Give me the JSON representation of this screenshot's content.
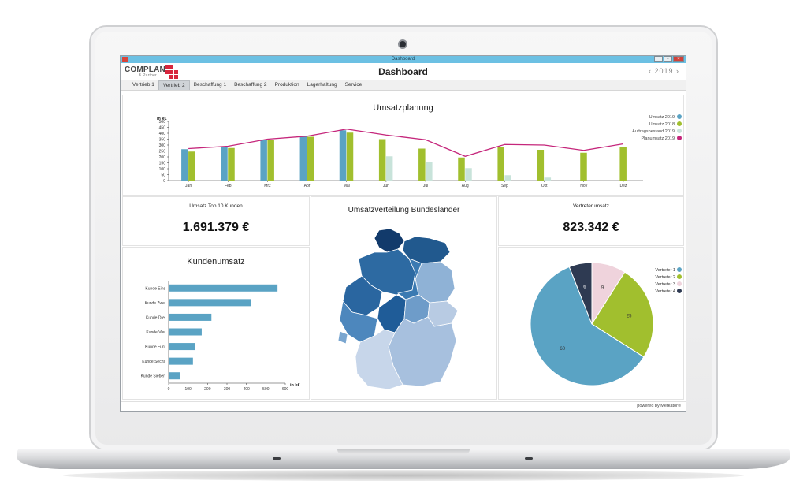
{
  "window": {
    "title": "Dashboard",
    "buttons": [
      "_",
      "▫",
      "×"
    ]
  },
  "header": {
    "logo_text": "COMPLAN",
    "logo_sub": "& Partner",
    "title": "Dashboard",
    "year_prev": "‹",
    "year": "2019",
    "year_next": "›"
  },
  "tabs": [
    "Vertrieb 1",
    "Vertrieb 2",
    "Beschaffung 1",
    "Beschaffung 2",
    "Produktion",
    "Lagerhaltung",
    "Service"
  ],
  "active_tab": 1,
  "umsatzplanung": {
    "title": "Umsatzplanung",
    "unit": "in k€",
    "legend": [
      "Umsatz 2019",
      "Umsatz 2018",
      "Auftragsbestand 2019",
      "Planumsatz 2019"
    ]
  },
  "kpi1": {
    "title": "Umsatz Top 10 Kunden",
    "value": "1.691.379 €"
  },
  "kpi2": {
    "title": "Vertreterumsatz",
    "value": "823.342 €"
  },
  "map": {
    "title": "Umsatzverteilung Bundesländer"
  },
  "kundenumsatz": {
    "title": "Kundenumsatz",
    "unit": "in k€"
  },
  "vertreter": {
    "legend": [
      "Vertreter 1",
      "Vertreter 2",
      "Vertreter 3",
      "Vertreter 4"
    ]
  },
  "footer": {
    "powered_by": "powered by Merkator®"
  },
  "colors": {
    "umsatz2019": "#5aa3c4",
    "umsatz2018": "#a1bf2e",
    "auftrag2019": "#c8e3da",
    "plan2019": "#c5267b",
    "v1": "#5aa3c4",
    "v2": "#a1bf2e",
    "v3": "#efd3dc",
    "v4": "#2e3a52"
  },
  "chart_data": [
    {
      "type": "bar",
      "title": "Umsatzplanung",
      "ylabel": "in k€",
      "categories": [
        "Jan",
        "Feb",
        "Mrz",
        "Apr",
        "Mai",
        "Jun",
        "Jul",
        "Aug",
        "Sep",
        "Okt",
        "Nov",
        "Dez"
      ],
      "ylim": [
        0,
        500
      ],
      "yticks": [
        0,
        50,
        100,
        150,
        200,
        250,
        300,
        350,
        400,
        450,
        500
      ],
      "series": [
        {
          "name": "Umsatz 2019",
          "kind": "bar",
          "values": [
            265,
            280,
            340,
            380,
            425,
            null,
            null,
            null,
            null,
            null,
            null,
            null
          ]
        },
        {
          "name": "Umsatz 2018",
          "kind": "bar",
          "values": [
            245,
            275,
            345,
            370,
            405,
            350,
            270,
            195,
            280,
            260,
            235,
            285
          ]
        },
        {
          "name": "Auftragsbestand 2019",
          "kind": "bar",
          "values": [
            null,
            null,
            null,
            null,
            null,
            205,
            155,
            105,
            45,
            25,
            null,
            null
          ]
        },
        {
          "name": "Planumsatz 2019",
          "kind": "line",
          "values": [
            270,
            290,
            350,
            375,
            435,
            385,
            345,
            205,
            305,
            300,
            255,
            310
          ]
        }
      ],
      "legend_position": "top-right"
    },
    {
      "type": "bar",
      "title": "Kundenumsatz",
      "orientation": "horizontal",
      "categories": [
        "Kunde Eins",
        "Kunde Zwei",
        "Kunde Drei",
        "Kunde Vier",
        "Kunde Fünf",
        "Kunde Sechs",
        "Kunde Sieben"
      ],
      "values": [
        560,
        425,
        220,
        170,
        135,
        125,
        60
      ],
      "xlabel": "in k€",
      "xlim": [
        0,
        600
      ],
      "xticks": [
        0,
        100,
        200,
        300,
        400,
        500,
        600
      ]
    },
    {
      "type": "pie",
      "categories": [
        "Vertreter 1",
        "Vertreter 2",
        "Vertreter 3",
        "Vertreter 4"
      ],
      "values": [
        60,
        25,
        9,
        6
      ],
      "legend_position": "top-right"
    }
  ]
}
